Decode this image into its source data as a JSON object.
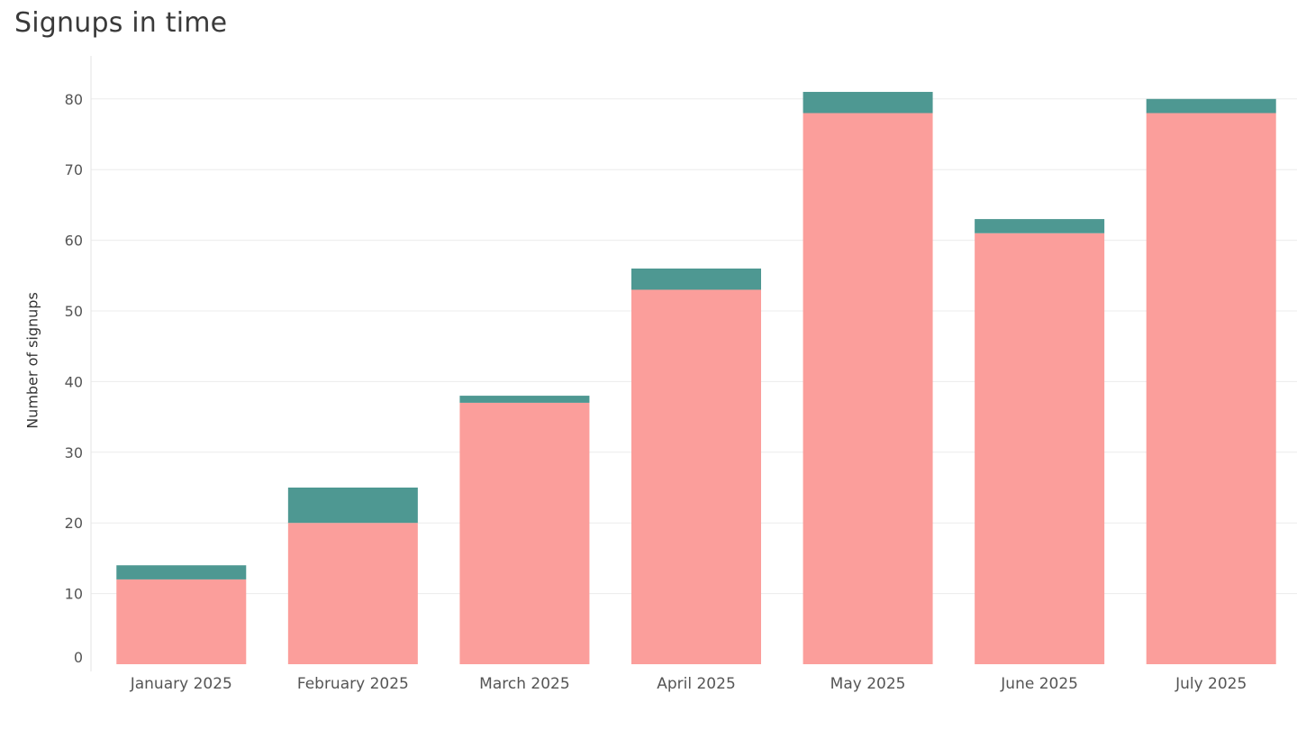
{
  "chart_data": {
    "type": "bar",
    "stacked": true,
    "title": "Signups in time",
    "xlabel": "",
    "ylabel": "Number of signups",
    "categories": [
      "January 2025",
      "February 2025",
      "March 2025",
      "April 2025",
      "May 2025",
      "June 2025",
      "July 2025"
    ],
    "series": [
      {
        "color": "#fb9e9b",
        "values": [
          12,
          20,
          37,
          53,
          78,
          61,
          78
        ]
      },
      {
        "color": "#4e9892",
        "values": [
          2,
          5,
          1,
          3,
          3,
          2,
          2
        ]
      }
    ],
    "ylim": [
      0,
      85
    ],
    "yticks": [
      0,
      10,
      20,
      30,
      40,
      50,
      60,
      70,
      80
    ],
    "grid": true,
    "legend": "none"
  }
}
